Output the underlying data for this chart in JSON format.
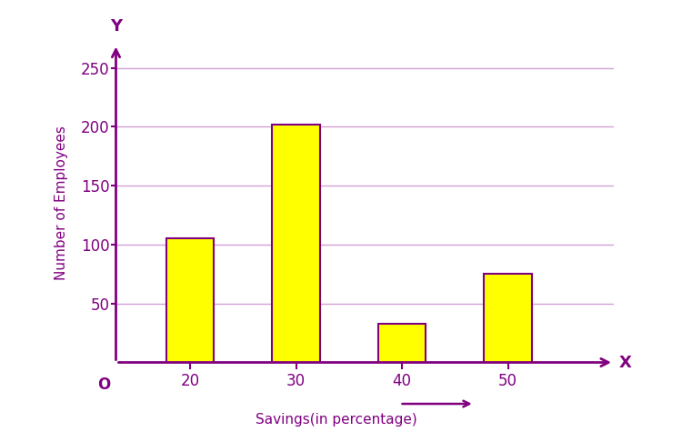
{
  "categories": [
    20,
    30,
    40,
    50
  ],
  "values": [
    105,
    202,
    33,
    75
  ],
  "bar_color": "#FFFF00",
  "bar_edgecolor": "#800080",
  "bar_width": 4.5,
  "xlim": [
    13,
    60
  ],
  "ylim": [
    0,
    270
  ],
  "yticks": [
    50,
    100,
    150,
    200,
    250
  ],
  "xticks": [
    20,
    30,
    40,
    50
  ],
  "xlabel": "Savings(in percentage)",
  "ylabel": "Number of Employees",
  "axis_color": "#800080",
  "label_color": "#800080",
  "grid_color": "#d4a0d4",
  "tick_color": "#800080",
  "origin_label": "O",
  "x_axis_label": "X",
  "y_axis_label": "Y",
  "background_color": "#ffffff",
  "figsize": [
    7.5,
    4.86
  ],
  "dpi": 100
}
